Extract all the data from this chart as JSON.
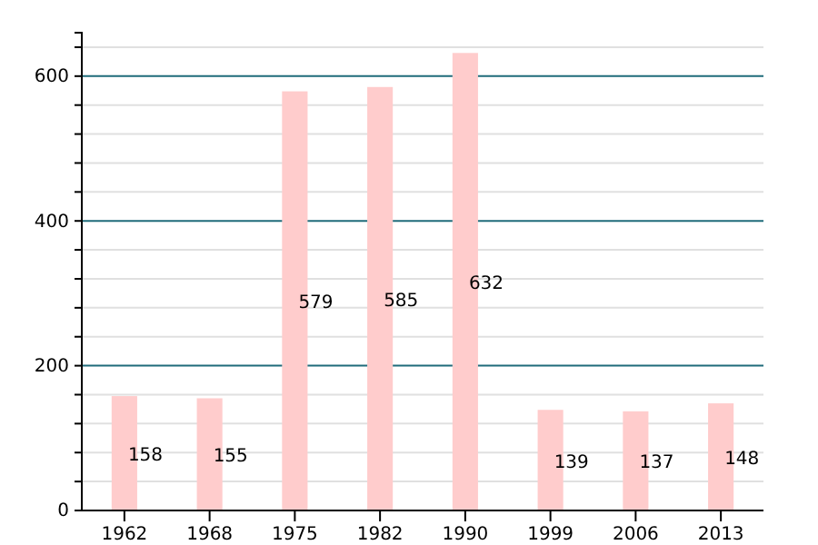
{
  "chart_data": {
    "type": "bar",
    "categories": [
      "1962",
      "1968",
      "1975",
      "1982",
      "1990",
      "1999",
      "2006",
      "2013"
    ],
    "values": [
      158,
      155,
      579,
      585,
      632,
      139,
      137,
      148
    ],
    "color": "#ffcccc",
    "data_labels": true,
    "grid": "y",
    "ylim": [
      0,
      660
    ],
    "yticks": [
      0,
      {
        "value": 40,
        "label": null
      },
      {
        "value": 80,
        "label": null
      },
      {
        "value": 120,
        "label": null
      },
      {
        "value": 160,
        "label": null
      },
      200,
      {
        "value": 240,
        "label": null
      },
      {
        "value": 280,
        "label": null
      },
      {
        "value": 320,
        "label": null
      },
      {
        "value": 360,
        "label": null
      },
      400,
      {
        "value": 440,
        "label": null
      },
      {
        "value": 480,
        "label": null
      },
      {
        "value": 520,
        "label": null
      },
      {
        "value": 560,
        "label": null
      },
      600,
      {
        "value": 640,
        "label": null
      }
    ]
  }
}
